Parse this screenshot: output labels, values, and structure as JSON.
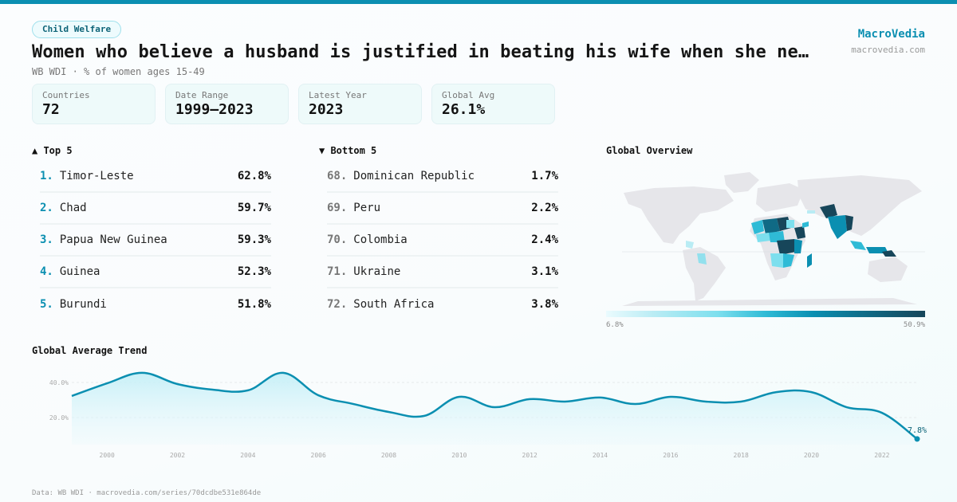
{
  "header": {
    "category_badge": "Child Welfare",
    "title": "Women who believe a husband is justified in beating his wife when she ne…",
    "subtitle": "WB WDI · % of women ages 15-49",
    "brand_name": "MacroVedia",
    "brand_url": "macrovedia.com"
  },
  "stats": [
    {
      "label": "Countries",
      "value": "72"
    },
    {
      "label": "Date Range",
      "value": "1999–2023"
    },
    {
      "label": "Latest Year",
      "value": "2023"
    },
    {
      "label": "Global Avg",
      "value": "26.1%"
    }
  ],
  "top5": {
    "heading": "▲ Top 5",
    "items": [
      {
        "rank": "1.",
        "name": "Timor-Leste",
        "value": "62.8%"
      },
      {
        "rank": "2.",
        "name": "Chad",
        "value": "59.7%"
      },
      {
        "rank": "3.",
        "name": "Papua New Guinea",
        "value": "59.3%"
      },
      {
        "rank": "4.",
        "name": "Guinea",
        "value": "52.3%"
      },
      {
        "rank": "5.",
        "name": "Burundi",
        "value": "51.8%"
      }
    ]
  },
  "bottom5": {
    "heading": "▼ Bottom 5",
    "items": [
      {
        "rank": "68.",
        "name": "Dominican Republic",
        "value": "1.7%"
      },
      {
        "rank": "69.",
        "name": "Peru",
        "value": "2.2%"
      },
      {
        "rank": "70.",
        "name": "Colombia",
        "value": "2.4%"
      },
      {
        "rank": "71.",
        "name": "Ukraine",
        "value": "3.1%"
      },
      {
        "rank": "72.",
        "name": "South Africa",
        "value": "3.8%"
      }
    ]
  },
  "map": {
    "title": "Global Overview",
    "legend_min": "6.8%",
    "legend_max": "50.9%",
    "colors": {
      "low": "#eafbfe",
      "mid": "#2fbbd6",
      "high": "#17465a",
      "land": "#e6e6ea"
    }
  },
  "trend": {
    "title": "Global Average Trend",
    "last_label": "7.8%"
  },
  "footer": {
    "text": "Data: WB WDI · macrovedia.com/series/70dcdbe531e864de"
  },
  "colors": {
    "accent": "#0b8fb1",
    "area_fill": "#cdf1f8"
  },
  "chart_data": {
    "type": "area",
    "title": "Global Average Trend",
    "xlabel": "",
    "ylabel": "",
    "x": [
      1999,
      2000,
      2001,
      2002,
      2003,
      2004,
      2005,
      2006,
      2007,
      2008,
      2009,
      2010,
      2011,
      2012,
      2013,
      2014,
      2015,
      2016,
      2017,
      2018,
      2019,
      2020,
      2021,
      2022,
      2023
    ],
    "series": [
      {
        "name": "Global Average (%)",
        "values": [
          32.3,
          39.5,
          45.5,
          39.1,
          35.9,
          35.5,
          45.5,
          32.7,
          27.7,
          23.2,
          20.9,
          31.8,
          25.9,
          30.5,
          29.1,
          31.4,
          27.7,
          31.8,
          29.1,
          29.1,
          34.5,
          34.5,
          25.9,
          22.7,
          7.8
        ]
      }
    ],
    "x_tick_labels": [
      "2000",
      "2002",
      "2004",
      "2006",
      "2008",
      "2010",
      "2012",
      "2014",
      "2016",
      "2018",
      "2020",
      "2022"
    ],
    "y_tick_labels": [
      "20.0%",
      "40.0%"
    ],
    "y_ticks": [
      20,
      40
    ],
    "ylim": [
      0,
      50
    ],
    "grid": true,
    "annotations": [
      {
        "x": 2023,
        "y": 7.8,
        "text": "7.8%"
      }
    ],
    "legend": "none"
  }
}
